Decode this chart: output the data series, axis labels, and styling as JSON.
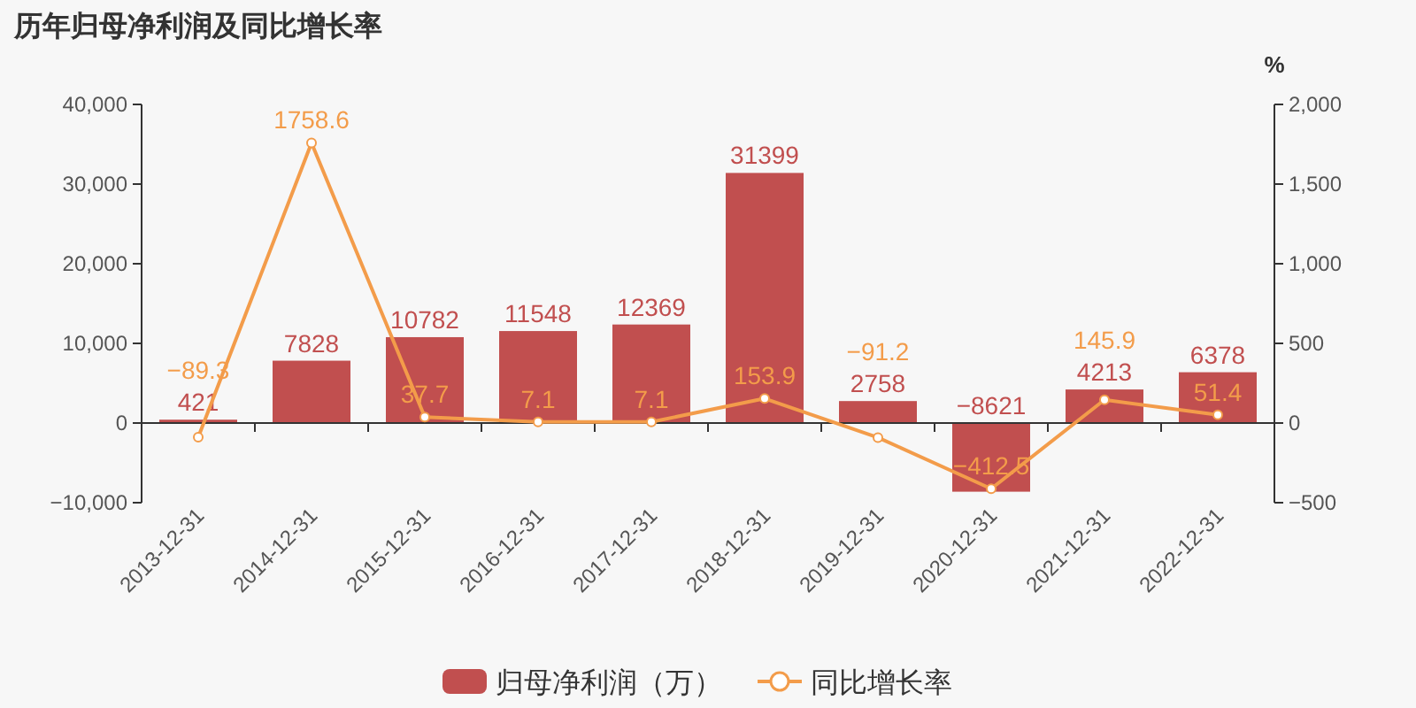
{
  "chart_data": {
    "type": "bar",
    "title": "历年归母净利润及同比增长率",
    "y2label": "%",
    "categories": [
      "2013-12-31",
      "2014-12-31",
      "2015-12-31",
      "2016-12-31",
      "2017-12-31",
      "2018-12-31",
      "2019-12-31",
      "2020-12-31",
      "2021-12-31",
      "2022-12-31"
    ],
    "series": [
      {
        "name": "归母净利润（万）",
        "color": "#c14f4f",
        "values": [
          421,
          7828,
          10782,
          11548,
          12369,
          31399,
          2758,
          -8621,
          4213,
          6378
        ]
      },
      {
        "name": "同比增长率",
        "type": "line",
        "axis": "y2",
        "color": "#f39c4a",
        "marker": "circle",
        "values": [
          -89.3,
          1758.6,
          37.7,
          7.1,
          7.1,
          153.9,
          -91.2,
          -412.5,
          145.9,
          51.4
        ]
      }
    ],
    "ylim": [
      -10000,
      40000
    ],
    "yticks": [
      {
        "value": -10000,
        "label": "−10,000"
      },
      {
        "value": 0,
        "label": "0"
      },
      {
        "value": 10000,
        "label": "10,000"
      },
      {
        "value": 20000,
        "label": "20,000"
      },
      {
        "value": 30000,
        "label": "30,000"
      },
      {
        "value": 40000,
        "label": "40,000"
      }
    ],
    "y2lim": [
      -500,
      2000
    ],
    "y2ticks": [
      {
        "value": -500,
        "label": "−500"
      },
      {
        "value": 0,
        "label": "0"
      },
      {
        "value": 500,
        "label": "500"
      },
      {
        "value": 1000,
        "label": "1,000"
      },
      {
        "value": 1500,
        "label": "1,500"
      },
      {
        "value": 2000,
        "label": "2,000"
      }
    ],
    "data_labels": true,
    "legend": "bottom"
  }
}
